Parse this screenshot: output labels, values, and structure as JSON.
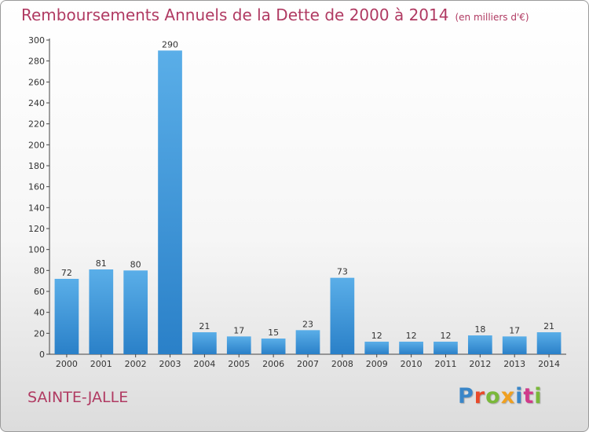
{
  "header": {
    "title": "Remboursements Annuels de la Dette de 2000 à 2014",
    "unit": "(en milliers d'€)"
  },
  "footer": {
    "commune": "SAINTE-JALLE",
    "logo_text": "Proxiti"
  },
  "colors": {
    "bar_light": "#5aaee8",
    "bar_dark": "#2a80c8",
    "title": "#b03a62",
    "logo": [
      "#3a86c8",
      "#e84a2a",
      "#7ab83a",
      "#f0a020",
      "#3a86c8",
      "#d03a8a",
      "#7ab83a"
    ]
  },
  "chart_data": {
    "type": "bar",
    "categories": [
      "2000",
      "2001",
      "2002",
      "2003",
      "2004",
      "2005",
      "2006",
      "2007",
      "2008",
      "2009",
      "2010",
      "2011",
      "2012",
      "2013",
      "2014"
    ],
    "values": [
      72,
      81,
      80,
      290,
      21,
      17,
      15,
      23,
      73,
      12,
      12,
      12,
      18,
      17,
      21
    ],
    "title": "Remboursements Annuels de la Dette de 2000 à 2014",
    "ylim": [
      0,
      300
    ],
    "yticks": [
      0,
      20,
      40,
      60,
      80,
      100,
      120,
      140,
      160,
      180,
      200,
      220,
      240,
      260,
      280,
      300
    ],
    "grid": false,
    "legend": "none"
  }
}
